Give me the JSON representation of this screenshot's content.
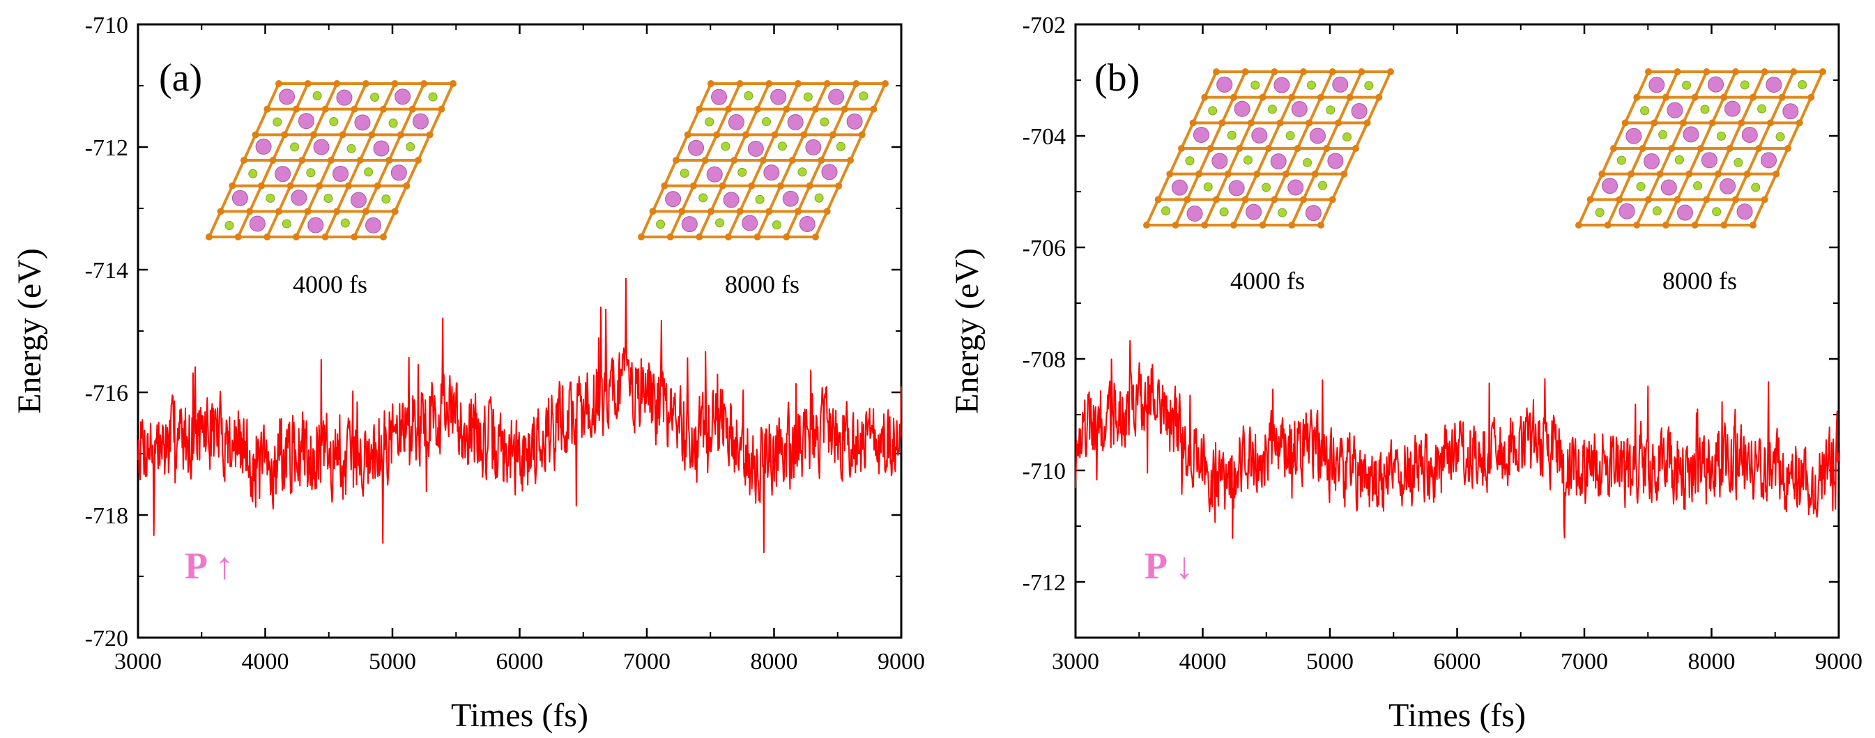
{
  "chart_data": [
    {
      "type": "line",
      "panel_label": "(a)",
      "xlabel": "Times (fs)",
      "ylabel": "Energy (eV)",
      "xlim": [
        3000,
        9000
      ],
      "ylim": [
        -720,
        -710
      ],
      "xticks": [
        3000,
        4000,
        5000,
        6000,
        7000,
        8000,
        9000
      ],
      "yticks": [
        -710,
        -712,
        -714,
        -716,
        -718,
        -720
      ],
      "xtick_labels": [
        "3000",
        "4000",
        "5000",
        "6000",
        "7000",
        "8000",
        "9000"
      ],
      "ytick_labels": [
        "-710",
        "-712",
        "-714",
        "-716",
        "-718",
        "-720"
      ],
      "polarization_label": "P ↑",
      "inset_labels": [
        "4000 fs",
        "8000 fs"
      ],
      "series": [
        {
          "name": "Energy",
          "color": "#ff0000",
          "x": [
            3000,
            3200,
            3400,
            3600,
            3800,
            4000,
            4200,
            4400,
            4600,
            4800,
            5000,
            5200,
            5400,
            5600,
            5800,
            6000,
            6200,
            6400,
            6600,
            6800,
            7000,
            7200,
            7400,
            7600,
            7800,
            8000,
            8200,
            8400,
            8600,
            8800,
            9000
          ],
          "y": [
            -716.8,
            -716.9,
            -716.7,
            -716.6,
            -716.9,
            -717.3,
            -717.0,
            -716.9,
            -717.2,
            -717.0,
            -716.7,
            -716.5,
            -716.3,
            -716.6,
            -716.9,
            -717.1,
            -716.6,
            -716.4,
            -716.1,
            -715.8,
            -716.0,
            -716.4,
            -716.8,
            -716.4,
            -717.2,
            -717.0,
            -716.8,
            -716.6,
            -716.7,
            -716.8,
            -717.0
          ]
        }
      ]
    },
    {
      "type": "line",
      "panel_label": "(b)",
      "xlabel": "Times (fs)",
      "ylabel": "Energy (eV)",
      "xlim": [
        3000,
        9000
      ],
      "ylim": [
        -713,
        -702
      ],
      "xticks": [
        3000,
        4000,
        5000,
        6000,
        7000,
        8000,
        9000
      ],
      "yticks": [
        -702,
        -704,
        -706,
        -708,
        -710,
        -712
      ],
      "xtick_labels": [
        "3000",
        "4000",
        "5000",
        "6000",
        "7000",
        "8000",
        "9000"
      ],
      "ytick_labels": [
        "-702",
        "-704",
        "-706",
        "-708",
        "-710",
        "-712"
      ],
      "polarization_label": "P ↓",
      "inset_labels": [
        "4000 fs",
        "8000 fs"
      ],
      "series": [
        {
          "name": "Energy",
          "color": "#ff0000",
          "x": [
            3000,
            3200,
            3400,
            3600,
            3800,
            4000,
            4200,
            4400,
            4600,
            4800,
            5000,
            5200,
            5400,
            5600,
            5800,
            6000,
            6200,
            6400,
            6600,
            6800,
            7000,
            7200,
            7400,
            7600,
            7800,
            8000,
            8200,
            8400,
            8600,
            8800,
            9000
          ],
          "y": [
            -709.3,
            -709.1,
            -709.0,
            -708.6,
            -709.3,
            -709.9,
            -710.1,
            -709.8,
            -709.6,
            -709.5,
            -709.9,
            -710.1,
            -710.2,
            -709.9,
            -710.0,
            -709.8,
            -709.7,
            -709.6,
            -709.4,
            -709.7,
            -710.0,
            -709.9,
            -710.1,
            -709.8,
            -710.2,
            -710.0,
            -709.8,
            -709.9,
            -710.1,
            -710.3,
            -709.6
          ]
        }
      ]
    }
  ]
}
